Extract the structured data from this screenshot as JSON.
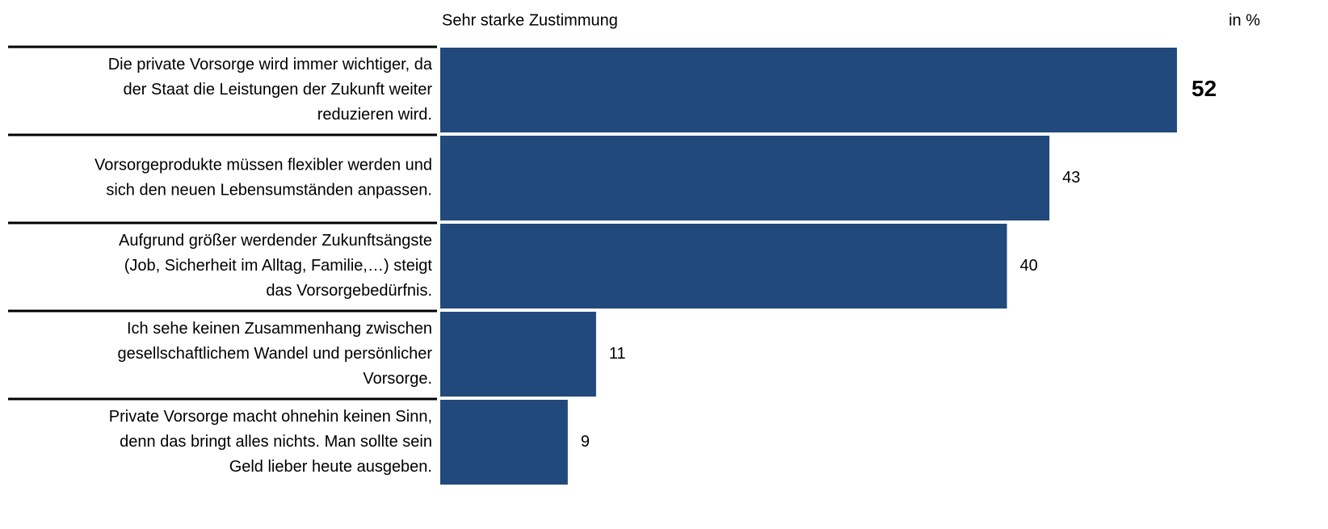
{
  "chart_data": {
    "type": "bar",
    "orientation": "horizontal",
    "title": "Sehr starke Zustimmung",
    "unit_label": "in %",
    "categories": [
      [
        "Die private Vorsorge wird immer wichtiger, da",
        "der Staat die Leistungen der Zukunft weiter",
        "reduzieren wird."
      ],
      [
        "Vorsorgeprodukte müssen flexibler werden und",
        "sich den neuen Lebensumständen anpassen."
      ],
      [
        "Aufgrund größer werdender Zukunftsängste",
        "(Job, Sicherheit im Alltag, Familie,…) steigt",
        "das Vorsorgebedürfnis."
      ],
      [
        "Ich sehe keinen Zusammenhang zwischen",
        "gesellschaftlichem Wandel und persönlicher",
        "Vorsorge."
      ],
      [
        "Private Vorsorge macht ohnehin keinen Sinn,",
        "denn das bringt alles nichts. Man sollte sein",
        "Geld lieber heute ausgeben."
      ]
    ],
    "values": [
      52,
      43,
      40,
      11,
      9
    ],
    "color": "#21497c"
  }
}
